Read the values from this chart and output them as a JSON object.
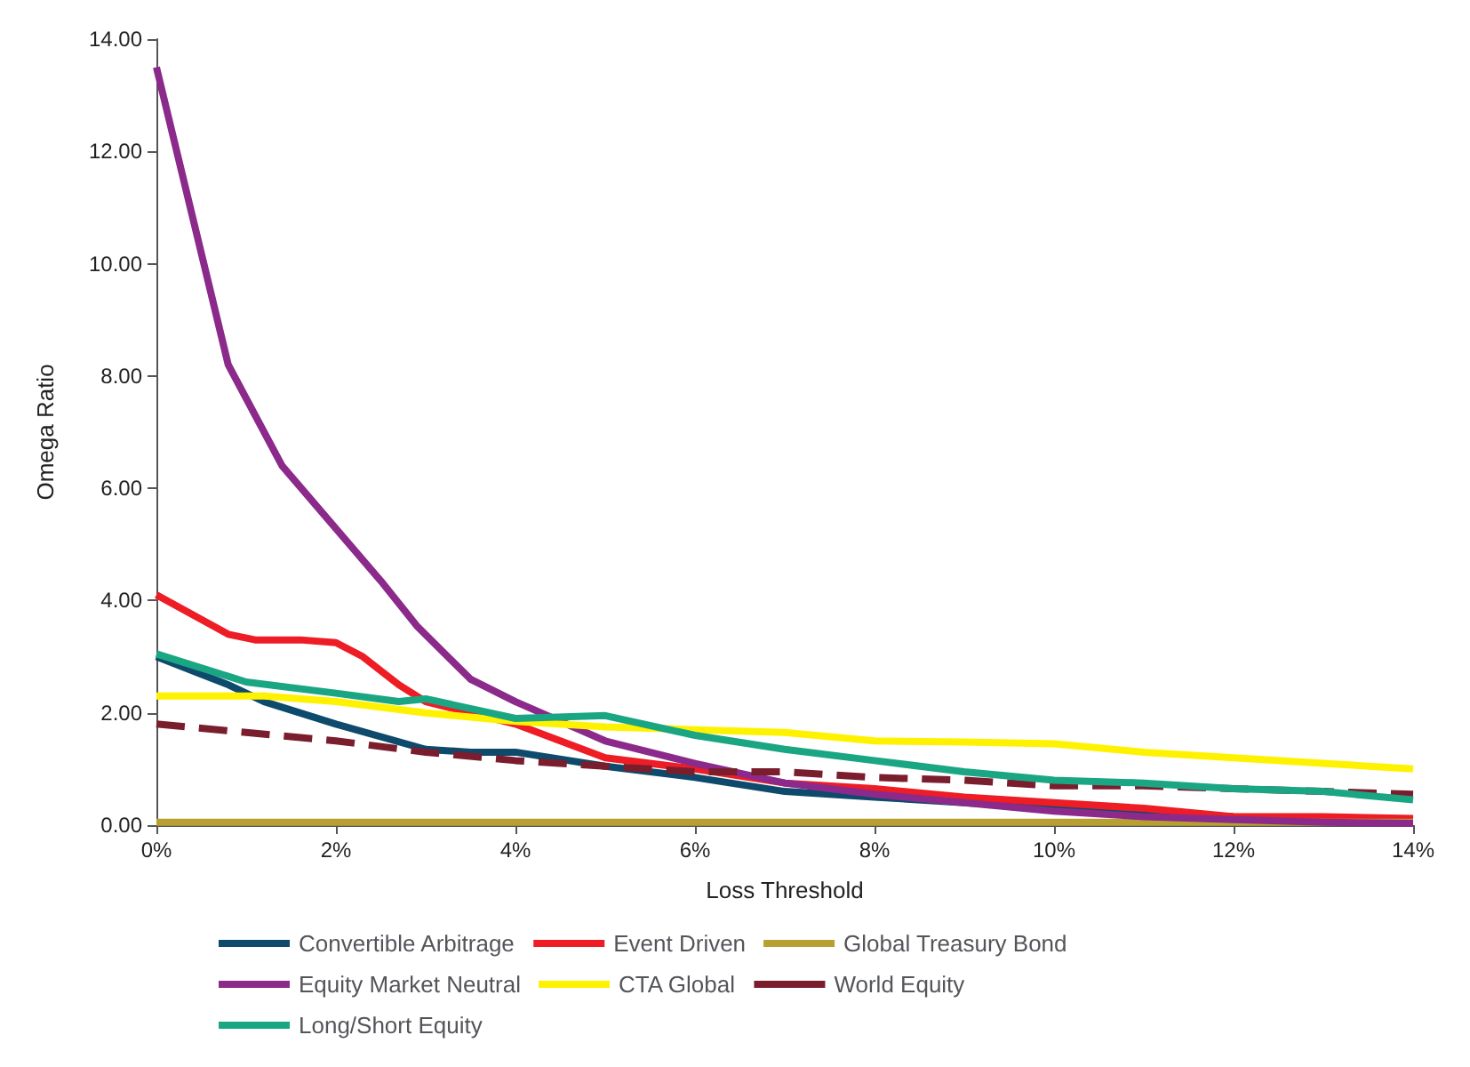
{
  "chart_data": {
    "type": "line",
    "xlabel": "Loss Threshold",
    "ylabel": "Omega Ratio",
    "xlim": [
      0,
      14
    ],
    "ylim": [
      0,
      14
    ],
    "xticks": [
      {
        "value": 0,
        "label": "0%"
      },
      {
        "value": 2,
        "label": "2%"
      },
      {
        "value": 4,
        "label": "4%"
      },
      {
        "value": 6,
        "label": "6%"
      },
      {
        "value": 8,
        "label": "8%"
      },
      {
        "value": 10,
        "label": "10%"
      },
      {
        "value": 12,
        "label": "12%"
      },
      {
        "value": 14,
        "label": "14%"
      }
    ],
    "yticks": [
      {
        "value": 0,
        "label": "0.00"
      },
      {
        "value": 2,
        "label": "2.00"
      },
      {
        "value": 4,
        "label": "4.00"
      },
      {
        "value": 6,
        "label": "6.00"
      },
      {
        "value": 8,
        "label": "8.00"
      },
      {
        "value": 10,
        "label": "10.00"
      },
      {
        "value": 12,
        "label": "12.00"
      },
      {
        "value": 14,
        "label": "14.00"
      }
    ],
    "grid": false,
    "legend": "bottom",
    "marker": "none",
    "line_style": "solid",
    "series": [
      {
        "name": "Convertible Arbitrage",
        "color": "#0d4a6b",
        "x": [
          0,
          0.8,
          1.2,
          2,
          3,
          3.5,
          4,
          5,
          6,
          7,
          8,
          9,
          10,
          11,
          12
        ],
        "values": [
          3.0,
          2.5,
          2.2,
          1.8,
          1.35,
          1.3,
          1.3,
          1.05,
          0.85,
          0.6,
          0.5,
          0.4,
          0.3,
          0.2,
          0.15
        ]
      },
      {
        "name": "Event Driven",
        "color": "#ee1c25",
        "x": [
          0,
          0.8,
          1.1,
          1.6,
          2,
          2.3,
          2.7,
          3,
          4,
          5,
          6,
          7,
          8,
          9,
          10,
          11,
          12,
          13,
          14
        ],
        "values": [
          4.1,
          3.4,
          3.3,
          3.3,
          3.25,
          3.0,
          2.5,
          2.2,
          1.8,
          1.2,
          1.0,
          0.75,
          0.65,
          0.5,
          0.4,
          0.3,
          0.15,
          0.15,
          0.12
        ]
      },
      {
        "name": "Global Treasury Bond",
        "color": "#b8a030",
        "x": [
          0,
          14
        ],
        "values": [
          0.05,
          0.05
        ]
      },
      {
        "name": "Equity Market Neutral",
        "color": "#8b2a8b",
        "x": [
          0,
          0.8,
          1.4,
          2.5,
          2.9,
          3.5,
          4,
          5,
          6,
          7,
          8,
          9,
          10,
          11,
          12,
          13,
          14
        ],
        "values": [
          13.5,
          8.2,
          6.4,
          4.35,
          3.55,
          2.6,
          2.2,
          1.5,
          1.1,
          0.75,
          0.55,
          0.4,
          0.25,
          0.15,
          0.1,
          0.05,
          0.03
        ]
      },
      {
        "name": "CTA Global",
        "color": "#fff200",
        "x": [
          0,
          1.2,
          2,
          3,
          4,
          5,
          6,
          7,
          8,
          9,
          10,
          11,
          12,
          13,
          14
        ],
        "values": [
          2.3,
          2.3,
          2.2,
          2.0,
          1.85,
          1.75,
          1.7,
          1.65,
          1.5,
          1.48,
          1.45,
          1.3,
          1.2,
          1.1,
          1.0
        ]
      },
      {
        "name": "World Equity",
        "color": "#7a1e2e",
        "line_style": "dashed",
        "x": [
          0,
          2,
          3,
          4,
          5,
          6,
          7,
          8,
          9,
          10,
          11,
          12,
          13,
          14
        ],
        "values": [
          1.8,
          1.5,
          1.3,
          1.15,
          1.05,
          0.95,
          0.95,
          0.85,
          0.8,
          0.7,
          0.7,
          0.65,
          0.6,
          0.55
        ]
      },
      {
        "name": "Long/Short Equity",
        "color": "#1aa683",
        "x": [
          0,
          1,
          2,
          2.7,
          3,
          4,
          5,
          6,
          7,
          8,
          9,
          10,
          11,
          12,
          13,
          14
        ],
        "values": [
          3.05,
          2.55,
          2.35,
          2.2,
          2.25,
          1.9,
          1.95,
          1.6,
          1.35,
          1.15,
          0.95,
          0.8,
          0.75,
          0.65,
          0.6,
          0.45
        ]
      }
    ]
  }
}
